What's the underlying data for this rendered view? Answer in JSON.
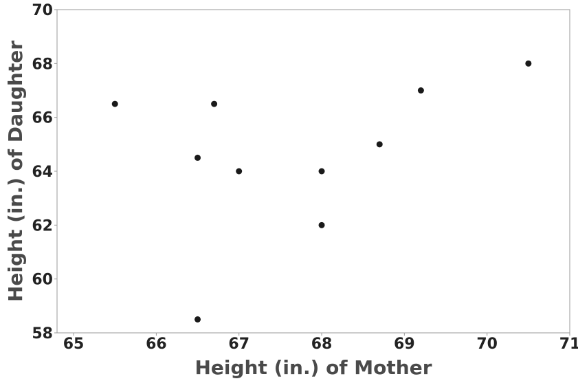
{
  "chart_data": {
    "type": "scatter",
    "title": "",
    "xlabel": "Height (in.) of Mother",
    "ylabel": "Height (in.) of Daughter",
    "xlim": [
      64.8,
      71
    ],
    "ylim": [
      58,
      70
    ],
    "xticks": [
      65,
      66,
      67,
      68,
      69,
      70,
      71
    ],
    "yticks": [
      58,
      60,
      62,
      64,
      66,
      68,
      70
    ],
    "grid": false,
    "series": [
      {
        "marker_color": "#1a1a1a",
        "points": [
          {
            "x": 65.5,
            "y": 66.5
          },
          {
            "x": 66.5,
            "y": 64.5
          },
          {
            "x": 66.5,
            "y": 58.5
          },
          {
            "x": 66.7,
            "y": 66.5
          },
          {
            "x": 67.0,
            "y": 64.0
          },
          {
            "x": 68.0,
            "y": 64.0
          },
          {
            "x": 68.0,
            "y": 62.0
          },
          {
            "x": 68.7,
            "y": 65.0
          },
          {
            "x": 69.2,
            "y": 67.0
          },
          {
            "x": 70.5,
            "y": 68.0
          }
        ]
      }
    ]
  }
}
